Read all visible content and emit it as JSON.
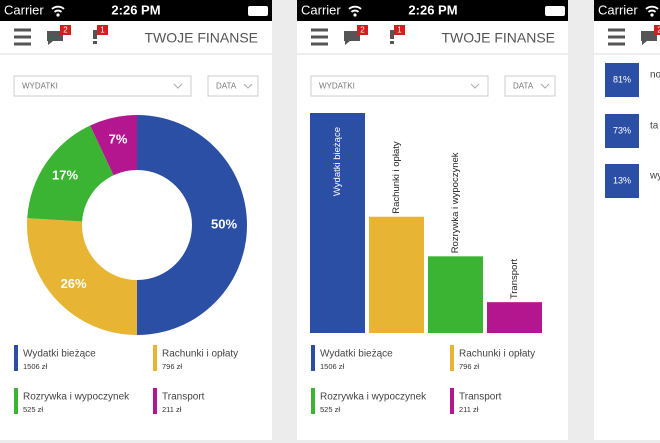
{
  "status_bar": {
    "carrier": "Carrier",
    "time": "2:26 PM"
  },
  "header": {
    "title": "TWOJE FINANSE",
    "badges": [
      "2",
      "1"
    ]
  },
  "filters": {
    "category": "WYDATKI",
    "date": "DATA"
  },
  "legend": {
    "names": [
      "Wydatki bieżące",
      "Rachunki i opłaty",
      "Rozrywka i wypoczynek",
      "Transport"
    ],
    "amounts": [
      "1506 zł",
      "796 zł",
      "525 zł",
      "211 zł"
    ],
    "colors": [
      "#2b4fa5",
      "#e7b533",
      "#3bb433",
      "#b3168e"
    ]
  },
  "donut": {
    "type": "pie",
    "values": [
      50,
      26,
      17,
      7
    ],
    "value_labels": [
      "50%",
      "26%",
      "17%",
      "7%"
    ]
  },
  "bars": {
    "type": "bar",
    "values": [
      1506,
      796,
      525,
      211
    ]
  },
  "list": {
    "values": [
      81,
      73,
      13
    ],
    "value_labels": [
      "81%",
      "73%",
      "13%"
    ],
    "texts": [
      "no",
      "ta",
      "wy"
    ],
    "color": "#2b4fa5"
  }
}
